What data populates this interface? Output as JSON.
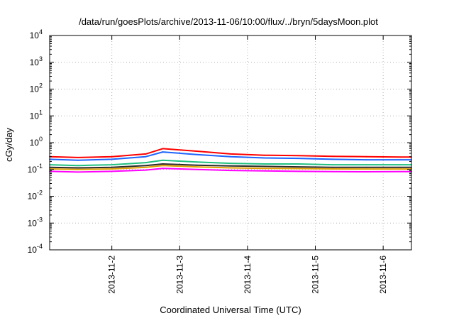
{
  "chart_data": {
    "type": "line",
    "title": "/data/run/goesPlots/archive/2013-11-06/10:00/flux/../bryn/5daysMoon.plot",
    "xlabel": "Coordinated Universal Time (UTC)",
    "ylabel": "cGy/day",
    "y_scale": "log",
    "ylim": [
      0.0001,
      10000
    ],
    "xlim": [
      "2013-11-01T02:00",
      "2013-11-06T10:00"
    ],
    "grid": true,
    "legend": "none",
    "x_ticks": [
      {
        "value": "2013-11-02T00:00",
        "label": "2013-11-2"
      },
      {
        "value": "2013-11-03T00:00",
        "label": "2013-11-3"
      },
      {
        "value": "2013-11-04T00:00",
        "label": "2013-11-4"
      },
      {
        "value": "2013-11-05T00:00",
        "label": "2013-11-5"
      },
      {
        "value": "2013-11-06T00:00",
        "label": "2013-11-6"
      }
    ],
    "y_ticks": [
      {
        "value": 0.0001,
        "base": "10",
        "exp": "-4"
      },
      {
        "value": 0.001,
        "base": "10",
        "exp": "-3"
      },
      {
        "value": 0.01,
        "base": "10",
        "exp": "-2"
      },
      {
        "value": 0.1,
        "base": "10",
        "exp": "-1"
      },
      {
        "value": 1,
        "base": "10",
        "exp": "0"
      },
      {
        "value": 10,
        "base": "10",
        "exp": "1"
      },
      {
        "value": 100,
        "base": "10",
        "exp": "2"
      },
      {
        "value": 1000,
        "base": "10",
        "exp": "3"
      },
      {
        "value": 10000,
        "base": "10",
        "exp": "4"
      }
    ],
    "x": [
      "2013-11-01T02:00",
      "2013-11-01T12:00",
      "2013-11-02T00:00",
      "2013-11-02T12:00",
      "2013-11-02T18:00",
      "2013-11-03T06:00",
      "2013-11-03T18:00",
      "2013-11-04T06:00",
      "2013-11-04T18:00",
      "2013-11-05T06:00",
      "2013-11-05T18:00",
      "2013-11-06T06:00",
      "2013-11-06T10:00"
    ],
    "series": [
      {
        "color": "#ff0000",
        "values": [
          0.3,
          0.28,
          0.3,
          0.38,
          0.6,
          0.48,
          0.38,
          0.34,
          0.33,
          0.31,
          0.3,
          0.29,
          0.29
        ]
      },
      {
        "color": "#1e64ff",
        "values": [
          0.24,
          0.22,
          0.24,
          0.3,
          0.45,
          0.36,
          0.3,
          0.27,
          0.26,
          0.24,
          0.23,
          0.23,
          0.23
        ]
      },
      {
        "color": "#20c080",
        "values": [
          0.15,
          0.14,
          0.15,
          0.18,
          0.22,
          0.19,
          0.17,
          0.16,
          0.16,
          0.15,
          0.15,
          0.15,
          0.15
        ]
      },
      {
        "color": "#2a2a2a",
        "values": [
          0.12,
          0.115,
          0.12,
          0.14,
          0.16,
          0.145,
          0.135,
          0.13,
          0.125,
          0.12,
          0.12,
          0.12,
          0.12
        ]
      },
      {
        "color": "#e0a000",
        "values": [
          0.105,
          0.1,
          0.105,
          0.12,
          0.14,
          0.125,
          0.115,
          0.11,
          0.108,
          0.105,
          0.104,
          0.104,
          0.104
        ]
      },
      {
        "color": "#ff00ff",
        "values": [
          0.085,
          0.08,
          0.085,
          0.095,
          0.11,
          0.1,
          0.092,
          0.088,
          0.085,
          0.083,
          0.082,
          0.083,
          0.083
        ]
      }
    ]
  }
}
